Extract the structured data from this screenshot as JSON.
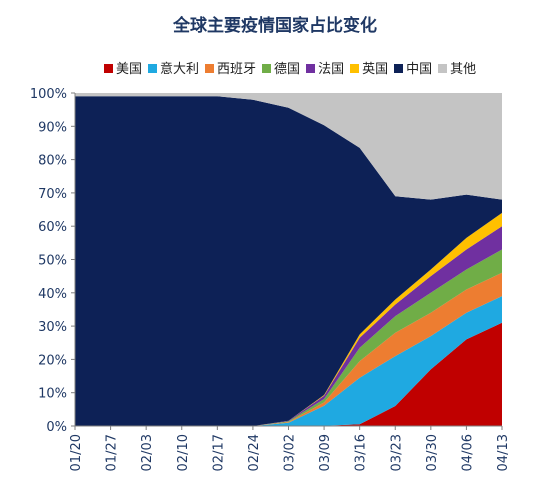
{
  "chart_data": {
    "type": "area",
    "title": "全球主要疫情国家占比变化",
    "stacked": true,
    "ylim": [
      0,
      100
    ],
    "y_unit": "%",
    "y_ticks": [
      "0%",
      "10%",
      "20%",
      "30%",
      "40%",
      "50%",
      "60%",
      "70%",
      "80%",
      "90%",
      "100%"
    ],
    "x_ticks": [
      "01/20",
      "01/27",
      "02/03",
      "02/10",
      "02/17",
      "02/24",
      "03/02",
      "03/09",
      "03/16",
      "03/23",
      "03/30",
      "04/06",
      "04/13"
    ],
    "legend_position": "top",
    "x": [
      "01/20",
      "01/27",
      "02/03",
      "02/10",
      "02/17",
      "02/24",
      "03/02",
      "03/09",
      "03/16",
      "03/23",
      "03/30",
      "04/06",
      "04/13"
    ],
    "series": [
      {
        "name": "美国",
        "color": "#c00000",
        "values": [
          0,
          0,
          0,
          0,
          0,
          0,
          0,
          0.1,
          0.5,
          6,
          17,
          26,
          31
        ]
      },
      {
        "name": "意大利",
        "color": "#1fa9e1",
        "values": [
          0,
          0,
          0,
          0,
          0,
          0,
          1,
          6,
          14,
          15,
          10,
          8,
          8
        ]
      },
      {
        "name": "西班牙",
        "color": "#ed7d31",
        "values": [
          0,
          0,
          0,
          0,
          0,
          0,
          0.2,
          1,
          5,
          7,
          7,
          7,
          7
        ]
      },
      {
        "name": "德国",
        "color": "#70ad47",
        "values": [
          0,
          0,
          0,
          0,
          0,
          0,
          0.2,
          1,
          4,
          5,
          6,
          6,
          7
        ]
      },
      {
        "name": "法国",
        "color": "#7030a0",
        "values": [
          0,
          0,
          0,
          0,
          0,
          0,
          0.2,
          1,
          3,
          3.5,
          5,
          6,
          7
        ]
      },
      {
        "name": "英国",
        "color": "#ffc000",
        "values": [
          0,
          0,
          0,
          0,
          0,
          0,
          0,
          0.2,
          1,
          1.5,
          2,
          3.5,
          4
        ]
      },
      {
        "name": "中国",
        "color": "#0d2156",
        "values": [
          99,
          99,
          99,
          99,
          99,
          98,
          94,
          81,
          56,
          31,
          21,
          13,
          4
        ]
      },
      {
        "name": "其他",
        "color": "#c4c4c4",
        "values": [
          1,
          1,
          1,
          1,
          1,
          2,
          4.4,
          9.7,
          16.5,
          31,
          32,
          30.5,
          32
        ]
      }
    ]
  }
}
